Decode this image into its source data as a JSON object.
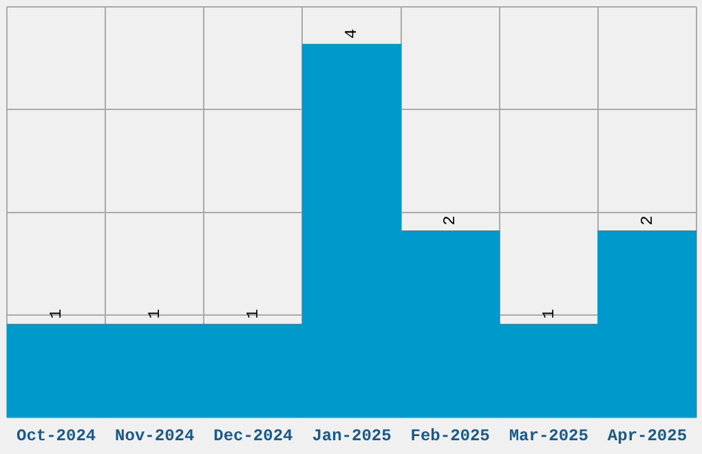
{
  "chart_data": {
    "type": "bar",
    "categories": [
      "Oct-2024",
      "Nov-2024",
      "Dec-2024",
      "Jan-2025",
      "Feb-2025",
      "Mar-2025",
      "Apr-2025"
    ],
    "values": [
      1,
      1,
      1,
      4,
      2,
      1,
      2
    ],
    "color": "#0099cc",
    "data_labels": true,
    "grid": true,
    "tick_labels": "x",
    "ylim": [
      0,
      4.4
    ],
    "yticks": [
      {
        "value": 0,
        "label": null
      },
      {
        "value": 1.1,
        "label": null
      },
      {
        "value": 2.2,
        "label": null
      },
      {
        "value": 3.3,
        "label": null
      },
      {
        "value": 4.4,
        "label": null
      }
    ]
  }
}
